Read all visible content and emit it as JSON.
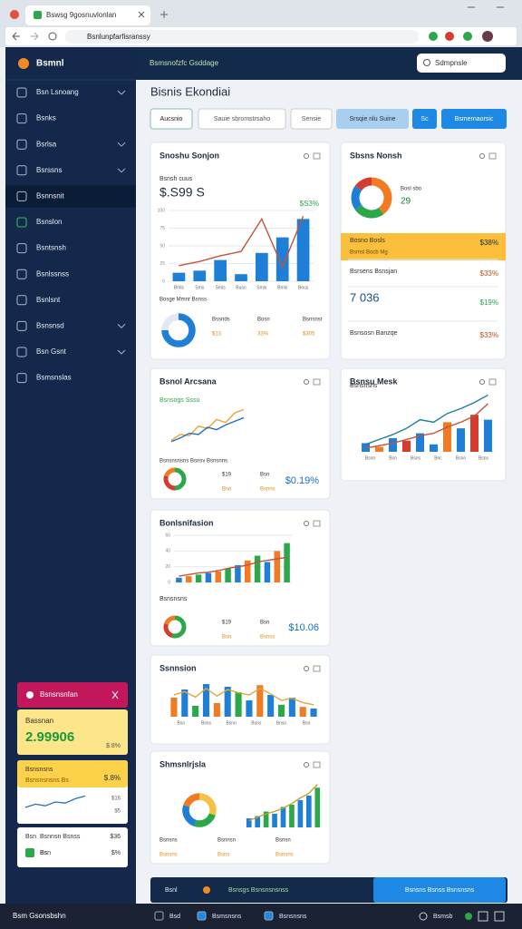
{
  "browser": {
    "tab_title": "Bswsg 9gosnuvlonlan",
    "address": "Bsnlunpfarfisranssy"
  },
  "sidebar": {
    "brand": "Bsmnl",
    "items": [
      {
        "label": "Bsn Lsnoang",
        "chevron": true
      },
      {
        "label": "Bsnks"
      },
      {
        "label": "Bsrlsa",
        "chevron": true
      },
      {
        "label": "Bsrssns",
        "chevron": true
      },
      {
        "label": "Bsnnsnit",
        "active": true
      },
      {
        "label": "Bsnslon"
      },
      {
        "label": "Bsntsnsh"
      },
      {
        "label": "Bsnlssnss"
      },
      {
        "label": "Bsnlsnt"
      },
      {
        "label": "Bsnsnsd",
        "chevron": true
      },
      {
        "label": "Bsn Gsnt",
        "chevron": true
      },
      {
        "label": "Bsmsnslas"
      }
    ],
    "widget": {
      "title": "Bsnsnsnfan",
      "kpi_card": {
        "label": "Bassnan",
        "value": "2.99906",
        "badge": "$.8%"
      },
      "trend_card": {
        "label": "Bsnsnsns",
        "sub": "Bsnsnsnsns Bs",
        "badge": "$.8%",
        "line": {
          "values": [
            10,
            16,
            13,
            20,
            18,
            26,
            31
          ],
          "ylim": [
            0,
            40
          ]
        },
        "ticks": [
          "$16",
          "$5"
        ]
      },
      "list_card": {
        "rows": [
          [
            "Bsn",
            "Bsnnsn Bsnss",
            "$36"
          ],
          [
            "Bs",
            "Bsn",
            "$%"
          ]
        ]
      }
    }
  },
  "header": {
    "text": "Bsmsnofzfc Gsddage",
    "search": "Sdmpnsle"
  },
  "page_title": "Bisnis Ekondiai",
  "toolbar": [
    "Aucsnio",
    "Sauie sbromstrsaho",
    "Sensie",
    "Srsqie nlu Suine",
    "Sc",
    "Bsmernaorsic"
  ],
  "cards": [
    {
      "title": "Snoshu Sonjon",
      "kpi_label": "Bsnsh cuus",
      "kpi": "$.S99 S",
      "delta": "$S3%",
      "chart": {
        "ylim": [
          0,
          100
        ],
        "yticks": [
          0,
          25,
          50,
          75,
          100
        ],
        "bars": [
          12,
          15,
          30,
          10,
          40,
          62,
          88
        ],
        "colors": [
          "#1f7fd6"
        ],
        "lines": [
          {
            "color": "#c4533a",
            "values": [
              22,
              28,
              36,
              42,
              88,
              20,
              92
            ]
          }
        ],
        "xlabels": [
          "Bmls",
          "Sms",
          "Smls",
          "Buso",
          "Smis",
          "Bmls",
          "Bous"
        ]
      },
      "caption": "Bosge Mmnr Bsnss",
      "donut": {
        "values": [
          75,
          25
        ],
        "colors": [
          "#1f7fd6",
          "#dfe8f3"
        ]
      },
      "stats": [
        {
          "label": "Bssnds",
          "value": "$13"
        },
        {
          "label": "Bosn",
          "value": "33%"
        },
        {
          "label": "Bsnsnsr",
          "value": "$305"
        }
      ]
    },
    {
      "title": "Sbsns Nonsh",
      "donut": {
        "values": [
          40,
          25,
          20,
          15
        ],
        "colors": [
          "#f07b22",
          "#2aa84a",
          "#1f7fd6",
          "#d63b2f"
        ]
      },
      "stats": [
        {
          "label": "Bosl sbo",
          "value": "29"
        }
      ],
      "rows": [
        {
          "label": "Bosno Bosls",
          "sub": "Bsmsl Bocb Mg",
          "value": "$38%",
          "highlight": true
        },
        {
          "label": "Bsrsens Bsnsjan",
          "value": "$33%"
        },
        {
          "label": "7 036",
          "value": "$19%",
          "big": true
        },
        {
          "label": "Bsnsosn Banzqe",
          "value": "$33%"
        }
      ]
    },
    {
      "title": "Bsnol Arcsana",
      "kpi_label": "Bsnsogs Sssu",
      "chart": {
        "ylim": [
          0,
          70
        ],
        "lines": [
          {
            "color": "#e6a43a",
            "values": [
              10,
              20,
              18,
              34,
              30,
              45,
              40,
              56,
              62
            ]
          },
          {
            "color": "#2a6fb6",
            "values": [
              8,
              14,
              22,
              20,
              32,
              28,
              36,
              42,
              48
            ]
          }
        ]
      },
      "caption": "Bsnsnsnsns Bsnsv Bsnsnns",
      "donut": {
        "values": [
          50,
          30,
          20
        ],
        "colors": [
          "#2aa84a",
          "#d63b2f",
          "#f07b22"
        ]
      },
      "stats": [
        {
          "label": "$19",
          "value": "Bsn"
        },
        {
          "label": "Bsn",
          "value": "Bsnns"
        }
      ],
      "total": "$0.19%"
    },
    {
      "title": "Bsnsu Mesk",
      "kpi_label": "Bsnsnsns",
      "chart": {
        "ylim": [
          0,
          100
        ],
        "bars": [
          14,
          8,
          22,
          18,
          30,
          12,
          48,
          38,
          60,
          52
        ],
        "colors": [
          "#1f7fd6",
          "#f07b22",
          "#1f7fd6",
          "#d63b2f",
          "#1f7fd6"
        ],
        "lines": [
          {
            "color": "#1a7fa0",
            "values": [
              12,
              20,
              28,
              38,
              52,
              48,
              62,
              70,
              80,
              92
            ]
          },
          {
            "color": "#c4533a",
            "values": [
              6,
              10,
              14,
              20,
              26,
              30,
              40,
              48,
              58,
              78
            ]
          }
        ],
        "xlabels": [
          "Bsnn",
          "Bsn",
          "Bsns",
          "Bnc",
          "Bsnn",
          "Bsns"
        ]
      }
    },
    {
      "title": "Bonlsnifasion",
      "kpi_label": "Bsnsnsns",
      "chart": {
        "ylim": [
          0,
          60
        ],
        "yticks": [
          0,
          20,
          40,
          60
        ],
        "bars": [
          6,
          8,
          10,
          12,
          14,
          18,
          22,
          28,
          34,
          26,
          40,
          50
        ],
        "colors": [
          "#1f7fd6",
          "#f07b22",
          "#2aa84a"
        ],
        "lines": [
          {
            "color": "#c4533a",
            "values": [
              8,
              10,
              12,
              13,
              15,
              18,
              20,
              22,
              26,
              28,
              30,
              32
            ]
          }
        ]
      },
      "donut": {
        "values": [
          55,
          25,
          20
        ],
        "colors": [
          "#2aa84a",
          "#d63b2f",
          "#f07b22"
        ]
      },
      "stats": [
        {
          "label": "$19",
          "value": "Bsn"
        },
        {
          "label": "Bsn",
          "value": "Bsnss"
        }
      ],
      "total": "$10.06"
    },
    {
      "title": "Ssnnsion",
      "chart": {
        "ylim": [
          0,
          70
        ],
        "bars": [
          35,
          50,
          20,
          60,
          25,
          55,
          45,
          30,
          58,
          40,
          22,
          35,
          18,
          15
        ],
        "colors": [
          "#f07b22",
          "#1f7fd6",
          "#2aa84a",
          "#1f7fd6"
        ],
        "lines": [
          {
            "color": "#e6a43a",
            "values": [
              40,
              46,
              36,
              52,
              38,
              50,
              44,
              40,
              52,
              42,
              30,
              34,
              26,
              22
            ]
          }
        ],
        "xlabels": [
          "Bsn",
          "Bsns",
          "Bsnn",
          "Bsns",
          "Bnsn",
          "Bsn"
        ]
      }
    },
    {
      "title": "Shmsnlrjsla",
      "chart": {
        "ylim": [
          0,
          40
        ],
        "bars": [
          8,
          10,
          14,
          12,
          18,
          20,
          24,
          28,
          35
        ],
        "colors": [
          "#1f7fd6",
          "#1f7fd6",
          "#2aa84a"
        ],
        "lines": [
          {
            "color": "#c8a22a",
            "values": [
              6,
              9,
              12,
              14,
              17,
              21,
              26,
              30,
              38
            ]
          }
        ]
      },
      "donut": {
        "values": [
          30,
          25,
          25,
          20
        ],
        "colors": [
          "#f5c244",
          "#2aa84a",
          "#1f7fd6",
          "#f07b22"
        ]
      },
      "stats": [
        {
          "label": "Bsnsns",
          "value": "Bsnsns"
        },
        {
          "label": "Bsnnsn",
          "value": "Bsns"
        },
        {
          "label": "Bsnsn",
          "value": "Bsnsns"
        }
      ]
    }
  ],
  "footer_bar": {
    "label": "Bsnl",
    "text": "Bsnsgs Bsnsnsnsnss",
    "button": "Bsnsns Bsnss Bsnsnsns"
  },
  "taskbar": {
    "start": "Bsm Gsonsbshn",
    "items": [
      "Bsd",
      "Bsmsnsns",
      "Bsnsnsns"
    ],
    "right": "Bsmsb"
  }
}
